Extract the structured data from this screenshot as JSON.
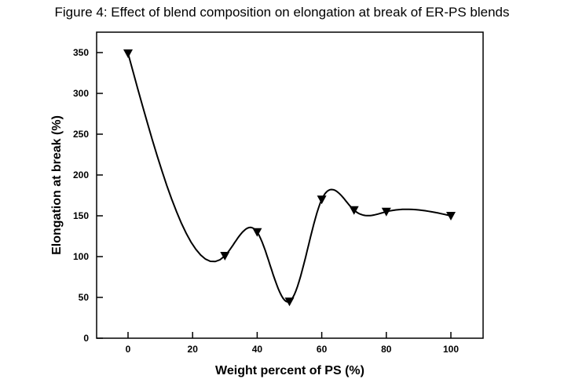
{
  "chart_data": {
    "type": "line",
    "title": "Figure 4: Effect of blend composition on elongation at break of ER-PS blends",
    "xlabel": "Weight percent of PS (%)",
    "ylabel": "Elongation at break (%)",
    "xlim": [
      -10,
      110
    ],
    "ylim": [
      0,
      375
    ],
    "xticks": [
      0,
      20,
      40,
      60,
      80,
      100
    ],
    "yticks": [
      0,
      50,
      100,
      150,
      200,
      250,
      300,
      350
    ],
    "grid": false,
    "marker": "down-triangle",
    "series": [
      {
        "name": "ER-PS",
        "x": [
          0,
          30,
          40,
          50,
          60,
          70,
          80,
          100
        ],
        "y": [
          349,
          101,
          130,
          45,
          170,
          157,
          155,
          150
        ]
      }
    ]
  }
}
